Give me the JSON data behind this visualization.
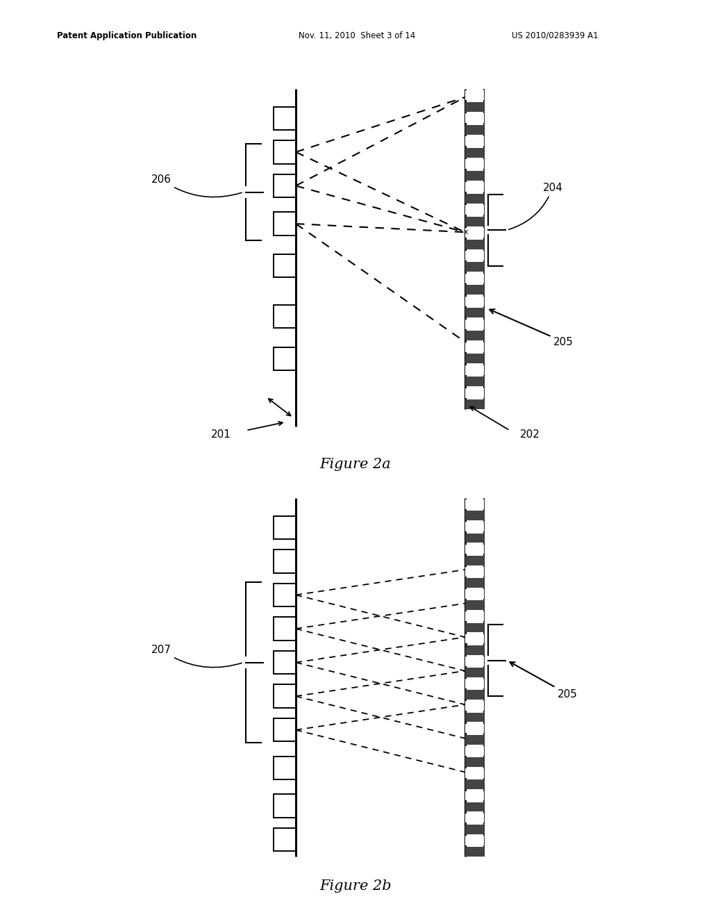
{
  "background_color": "#ffffff",
  "fig_width": 10.24,
  "fig_height": 13.2,
  "header_text_left": "Patent Application Publication",
  "header_text_mid": "Nov. 11, 2010  Sheet 3 of 14",
  "header_text_right": "US 2010/0283939 A1",
  "fig2a_title": "Figure 2a",
  "fig2b_title": "Figure 2b",
  "lc": "#000000",
  "dc": "#000000"
}
